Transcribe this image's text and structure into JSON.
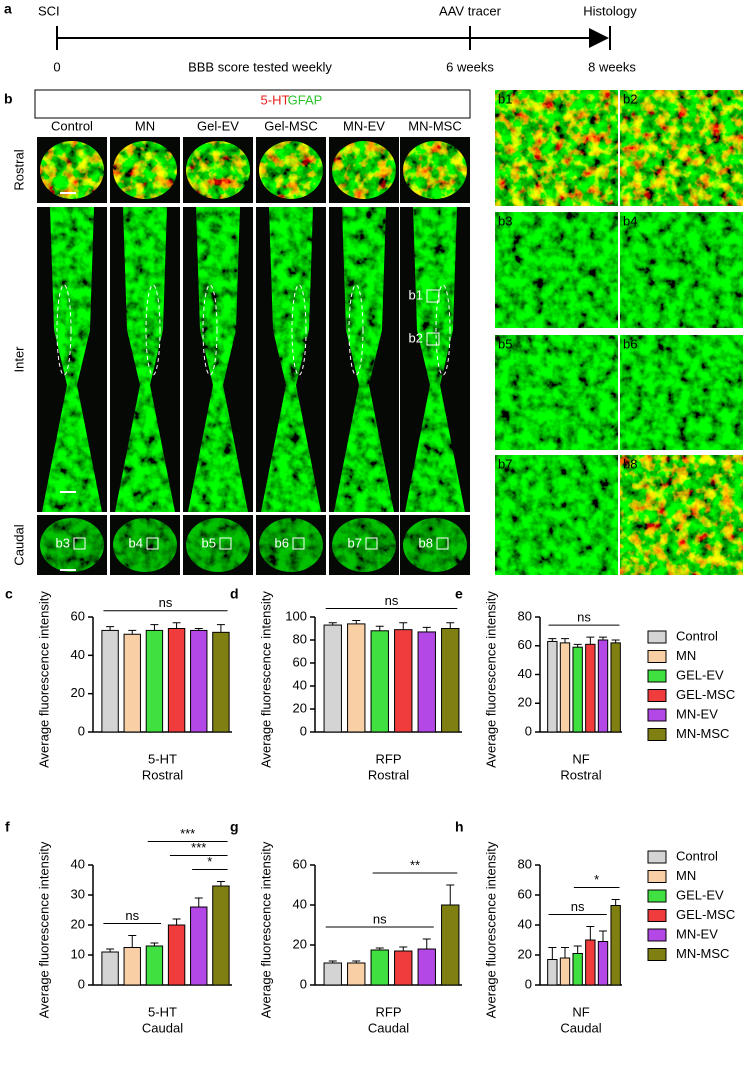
{
  "timeline": {
    "label": "a",
    "start": "SCI",
    "start_time": "0",
    "middle": "BBB score tested weekly",
    "tracer": "AAV tracer",
    "tracer_time": "6 weeks",
    "end": "Histology",
    "end_time": "8  weeks"
  },
  "panel_b": {
    "label": "b",
    "stain_red": "5-HT",
    "stain_green": "GFAP",
    "columns": [
      "Control",
      "MN",
      "Gel-EV",
      "Gel-MSC",
      "MN-EV",
      "MN-MSC"
    ],
    "rows": [
      "Rostral",
      "Inter",
      "Caudal"
    ],
    "zoom_labels": [
      "b1",
      "b2",
      "b3",
      "b4",
      "b5",
      "b6",
      "b7",
      "b8"
    ]
  },
  "legend": [
    {
      "name": "Control",
      "color": "#d4d4d4"
    },
    {
      "name": "MN",
      "color": "#f9d0a6"
    },
    {
      "name": "GEL-EV",
      "color": "#3fe03f"
    },
    {
      "name": "GEL-MSC",
      "color": "#f03c3c"
    },
    {
      "name": "MN-EV",
      "color": "#b348e6"
    },
    {
      "name": "MN-MSC",
      "color": "#7f7f12"
    }
  ],
  "chart_data": [
    {
      "label": "c",
      "type": "bar",
      "ylabel": "Average fluorescence intensity",
      "xlabel": [
        "5-HT",
        "Rostral"
      ],
      "values": [
        53,
        51,
        53,
        54,
        53,
        52
      ],
      "errors": [
        2,
        2,
        3,
        3,
        1,
        4
      ],
      "ylim": [
        0,
        60
      ],
      "yticks": [
        0,
        20,
        40,
        60
      ],
      "annotations": [
        {
          "text": "ns",
          "span": [
            "Control",
            "MN-MSC"
          ]
        }
      ]
    },
    {
      "label": "d",
      "type": "bar",
      "ylabel": "Average fluorescence intensity",
      "xlabel": [
        "RFP",
        "Rostral"
      ],
      "values": [
        93,
        94,
        88,
        89,
        87,
        90
      ],
      "errors": [
        2,
        3,
        4,
        6,
        4,
        5
      ],
      "ylim": [
        0,
        100
      ],
      "yticks": [
        0,
        20,
        40,
        60,
        80,
        100
      ],
      "annotations": [
        {
          "text": "ns",
          "span": [
            "Control",
            "MN-MSC"
          ]
        }
      ]
    },
    {
      "label": "e",
      "type": "bar",
      "ylabel": "Average fluorescence intensity",
      "xlabel": [
        "NF",
        "Rostral"
      ],
      "values": [
        63,
        62,
        59,
        61,
        64,
        62
      ],
      "errors": [
        2,
        3,
        2,
        5,
        2,
        2
      ],
      "ylim": [
        0,
        80
      ],
      "yticks": [
        0,
        20,
        40,
        60,
        80
      ],
      "annotations": [
        {
          "text": "ns",
          "span": [
            "Control",
            "MN-MSC"
          ]
        }
      ]
    },
    {
      "label": "f",
      "type": "bar",
      "ylabel": "Average fluorescence intensity",
      "xlabel": [
        "5-HT",
        "Caudal"
      ],
      "values": [
        11,
        12.5,
        13,
        20,
        26,
        33
      ],
      "errors": [
        1,
        4,
        1,
        2,
        3,
        1.5
      ],
      "ylim": [
        0,
        40
      ],
      "yticks": [
        0,
        10,
        20,
        30,
        40
      ],
      "annotations": [
        {
          "text": "***",
          "span": [
            "GEL-EV",
            "MN-MSC"
          ]
        },
        {
          "text": "***",
          "span": [
            "GEL-MSC",
            "MN-MSC"
          ]
        },
        {
          "text": "*",
          "span": [
            "MN-EV",
            "MN-MSC"
          ]
        },
        {
          "text": "ns",
          "span": [
            "Control",
            "GEL-EV"
          ]
        }
      ]
    },
    {
      "label": "g",
      "type": "bar",
      "ylabel": "Average fluorescence intensity",
      "xlabel": [
        "RFP",
        "Caudal"
      ],
      "values": [
        11,
        11,
        17.5,
        17,
        18,
        40
      ],
      "errors": [
        1,
        1,
        1,
        2,
        5,
        10
      ],
      "ylim": [
        0,
        60
      ],
      "yticks": [
        0,
        20,
        40,
        60
      ],
      "annotations": [
        {
          "text": "**",
          "span": [
            "GEL-EV",
            "MN-MSC"
          ]
        },
        {
          "text": "ns",
          "span": [
            "Control",
            "MN-EV"
          ]
        }
      ]
    },
    {
      "label": "h",
      "type": "bar",
      "ylabel": "Average fluorescence intensity",
      "xlabel": [
        "NF",
        "Caudal"
      ],
      "values": [
        17,
        18,
        21,
        30,
        29,
        53
      ],
      "errors": [
        8,
        7,
        5,
        9,
        7,
        4
      ],
      "ylim": [
        0,
        80
      ],
      "yticks": [
        0,
        20,
        40,
        60,
        80
      ],
      "annotations": [
        {
          "text": "*",
          "span": [
            "GEL-EV",
            "MN-MSC"
          ]
        },
        {
          "text": "ns",
          "span": [
            "Control",
            "MN-EV"
          ]
        }
      ]
    }
  ]
}
